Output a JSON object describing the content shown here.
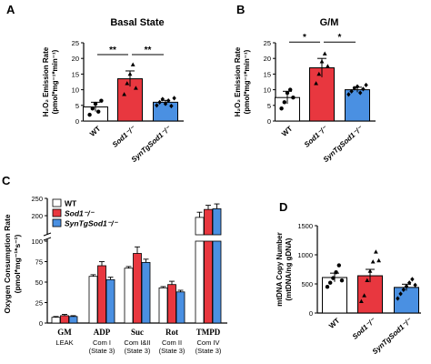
{
  "chart_data": [
    {
      "id": "A",
      "panel_label": "A",
      "type": "bar",
      "title": "Basal State",
      "ylabel_lines": [
        "H₂O₂ Emission Rate",
        "(pmol*mg⁻¹*min⁻¹)"
      ],
      "ylim": [
        0,
        25
      ],
      "yticks": [
        "0",
        "5",
        "10",
        "15",
        "20",
        "25"
      ],
      "categories": [
        "WT",
        "Sod1⁻/⁻",
        "SynTgSod1⁻/⁻"
      ],
      "values": [
        4.5,
        13.5,
        6.0
      ],
      "errors": [
        1.5,
        2.5,
        0.6
      ],
      "points": [
        [
          2.0,
          4.0,
          5.5,
          3.0,
          6.5
        ],
        [
          8.5,
          12.0,
          15.0,
          18.0,
          10.5
        ],
        [
          5.0,
          6.0,
          7.0,
          5.5,
          6.5,
          4.8,
          7.3
        ]
      ],
      "colors": [
        "#ffffff",
        "#e8373f",
        "#4a90e2"
      ],
      "significance": [
        {
          "from": 0,
          "to": 1,
          "label": "**"
        },
        {
          "from": 1,
          "to": 2,
          "label": "**"
        }
      ]
    },
    {
      "id": "B",
      "panel_label": "B",
      "type": "bar",
      "title": "G/M",
      "ylabel_lines": [
        "H₂O₂ Emission Rate",
        "(pmol*mg⁻¹*min⁻¹)"
      ],
      "ylim": [
        0,
        25
      ],
      "yticks": [
        "0",
        "5",
        "10",
        "15",
        "20",
        "25"
      ],
      "categories": [
        "WT",
        "Sod1⁻/⁻",
        "SynTgSod1⁻/⁻"
      ],
      "values": [
        7.5,
        17.0,
        10.0
      ],
      "errors": [
        2.0,
        3.0,
        0.8
      ],
      "points": [
        [
          4.0,
          6.0,
          9.0,
          10.0,
          7.5
        ],
        [
          12.0,
          15.0,
          19.0,
          21.5,
          17.5
        ],
        [
          8.5,
          9.5,
          10.5,
          11.0,
          9.0,
          10.2,
          11.5
        ]
      ],
      "colors": [
        "#ffffff",
        "#e8373f",
        "#4a90e2"
      ],
      "significance": [
        {
          "from": 0,
          "to": 1,
          "label": "*"
        },
        {
          "from": 1,
          "to": 2,
          "label": "*"
        }
      ]
    },
    {
      "id": "C",
      "panel_label": "C",
      "type": "bar",
      "ylabel_lines": [
        "Oxygen Consumption Rate",
        "(pmol*mg⁻¹*s⁻¹)"
      ],
      "axis_break": [
        100,
        150
      ],
      "ylim": [
        0,
        250
      ],
      "yticks": [
        "0",
        "25",
        "50",
        "75",
        "100",
        "200",
        "250"
      ],
      "categories": [
        "GM",
        "ADP",
        "Suc",
        "Rot",
        "TMPD"
      ],
      "sublabels": [
        "LEAK",
        "Com I|(State 3)",
        "Com I&II|(State 3)",
        "Com II|(State 3)",
        "Com IV|(State 3)"
      ],
      "legend": [
        "WT",
        "Sod1⁻/⁻",
        "SynTgSod1⁻/⁻"
      ],
      "legend_position": "top-left",
      "series": [
        {
          "values": [
            7,
            57,
            67,
            43,
            195
          ],
          "errors": [
            1,
            2,
            2,
            1.5,
            15
          ]
        },
        {
          "values": [
            9,
            70,
            85,
            47,
            218
          ],
          "errors": [
            1.5,
            5,
            8,
            4,
            12
          ]
        },
        {
          "values": [
            8,
            53,
            74,
            38,
            220
          ],
          "errors": [
            1,
            3,
            4,
            2,
            14
          ]
        }
      ],
      "colors": [
        "#ffffff",
        "#e8373f",
        "#4a90e2"
      ]
    },
    {
      "id": "D",
      "panel_label": "D",
      "type": "bar",
      "ylabel_lines": [
        "mtDNA Copy Number",
        "(mtDNA/ng gDNA)"
      ],
      "ylim": [
        0,
        1500
      ],
      "yticks": [
        "0",
        "500",
        "1000",
        "1500"
      ],
      "categories": [
        "WT",
        "Sod1⁻/⁻",
        "SynTgSod1⁻/⁻"
      ],
      "values": [
        610,
        640,
        440
      ],
      "errors": [
        75,
        110,
        55
      ],
      "points": [
        [
          450,
          520,
          600,
          700,
          820,
          560
        ],
        [
          200,
          300,
          560,
          720,
          880,
          1050,
          900
        ],
        [
          250,
          330,
          400,
          460,
          520,
          580,
          480
        ]
      ],
      "colors": [
        "#ffffff",
        "#e8373f",
        "#4a90e2"
      ]
    }
  ]
}
